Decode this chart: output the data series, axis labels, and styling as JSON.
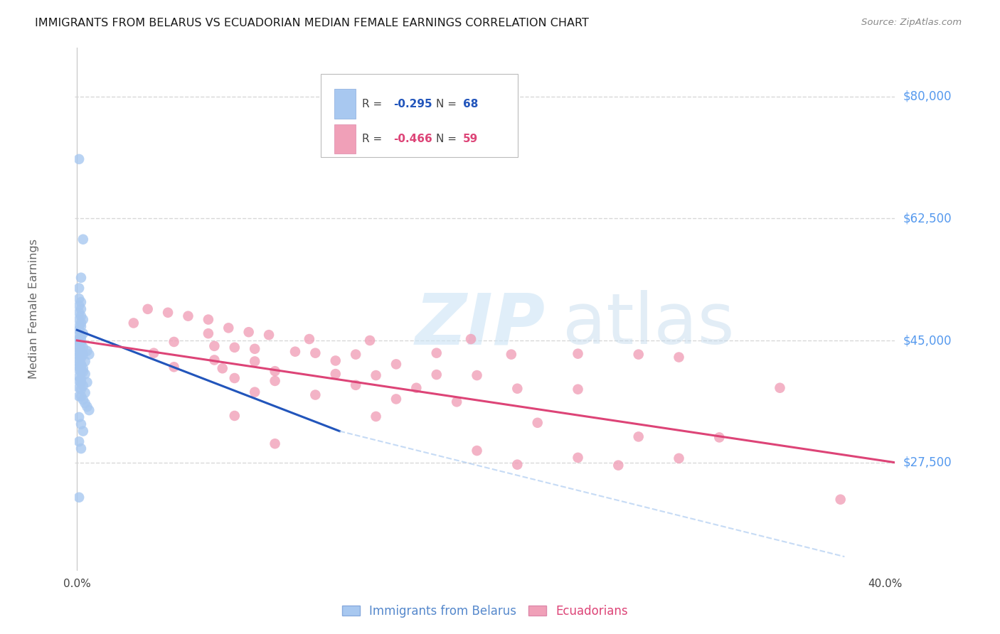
{
  "title": "IMMIGRANTS FROM BELARUS VS ECUADORIAN MEDIAN FEMALE EARNINGS CORRELATION CHART",
  "source": "Source: ZipAtlas.com",
  "ylabel": "Median Female Earnings",
  "ytick_labels": [
    "$80,000",
    "$62,500",
    "$45,000",
    "$27,500"
  ],
  "ytick_values": [
    80000,
    62500,
    45000,
    27500
  ],
  "ylim": [
    12000,
    87000
  ],
  "xlim": [
    -0.001,
    0.405
  ],
  "legend_label_blue": "Immigrants from Belarus",
  "legend_label_pink": "Ecuadorians",
  "blue_color": "#a8c8f0",
  "pink_color": "#f0a0b8",
  "blue_line_color": "#2255bb",
  "pink_line_color": "#dd4477",
  "blue_scatter": [
    [
      0.001,
      71000
    ],
    [
      0.003,
      59500
    ],
    [
      0.002,
      54000
    ],
    [
      0.001,
      52500
    ],
    [
      0.001,
      51000
    ],
    [
      0.002,
      50500
    ],
    [
      0.001,
      50000
    ],
    [
      0.002,
      49500
    ],
    [
      0.001,
      49000
    ],
    [
      0.002,
      48500
    ],
    [
      0.001,
      48000
    ],
    [
      0.003,
      48000
    ],
    [
      0.002,
      47500
    ],
    [
      0.001,
      47000
    ],
    [
      0.002,
      47000
    ],
    [
      0.001,
      46500
    ],
    [
      0.003,
      46000
    ],
    [
      0.001,
      45800
    ],
    [
      0.002,
      45500
    ],
    [
      0.001,
      45200
    ],
    [
      0.002,
      45000
    ],
    [
      0.001,
      44800
    ],
    [
      0.002,
      44500
    ],
    [
      0.001,
      44200
    ],
    [
      0.003,
      44000
    ],
    [
      0.001,
      43800
    ],
    [
      0.002,
      43500
    ],
    [
      0.001,
      43200
    ],
    [
      0.002,
      43000
    ],
    [
      0.003,
      43000
    ],
    [
      0.001,
      42800
    ],
    [
      0.002,
      42500
    ],
    [
      0.001,
      42200
    ],
    [
      0.004,
      42000
    ],
    [
      0.001,
      41800
    ],
    [
      0.002,
      41500
    ],
    [
      0.001,
      41200
    ],
    [
      0.002,
      41000
    ],
    [
      0.003,
      41000
    ],
    [
      0.001,
      40800
    ],
    [
      0.002,
      40500
    ],
    [
      0.004,
      40200
    ],
    [
      0.001,
      39800
    ],
    [
      0.002,
      39500
    ],
    [
      0.001,
      39200
    ],
    [
      0.002,
      39000
    ],
    [
      0.005,
      39000
    ],
    [
      0.003,
      38500
    ],
    [
      0.001,
      38200
    ],
    [
      0.002,
      38000
    ],
    [
      0.004,
      37500
    ],
    [
      0.001,
      37000
    ],
    [
      0.002,
      37000
    ],
    [
      0.003,
      36500
    ],
    [
      0.004,
      36000
    ],
    [
      0.005,
      35500
    ],
    [
      0.006,
      35000
    ],
    [
      0.005,
      43500
    ],
    [
      0.006,
      43000
    ],
    [
      0.001,
      34000
    ],
    [
      0.002,
      33000
    ],
    [
      0.003,
      32000
    ],
    [
      0.001,
      30500
    ],
    [
      0.002,
      29500
    ],
    [
      0.001,
      22500
    ],
    [
      0.002,
      41500
    ],
    [
      0.003,
      40500
    ]
  ],
  "pink_scatter": [
    [
      0.035,
      49500
    ],
    [
      0.045,
      49000
    ],
    [
      0.055,
      48500
    ],
    [
      0.065,
      48000
    ],
    [
      0.028,
      47500
    ],
    [
      0.075,
      46800
    ],
    [
      0.065,
      46000
    ],
    [
      0.085,
      46200
    ],
    [
      0.095,
      45800
    ],
    [
      0.115,
      45200
    ],
    [
      0.048,
      44800
    ],
    [
      0.145,
      45000
    ],
    [
      0.195,
      45200
    ],
    [
      0.068,
      44200
    ],
    [
      0.078,
      44000
    ],
    [
      0.088,
      43800
    ],
    [
      0.108,
      43400
    ],
    [
      0.118,
      43200
    ],
    [
      0.138,
      43000
    ],
    [
      0.178,
      43200
    ],
    [
      0.215,
      43000
    ],
    [
      0.248,
      43100
    ],
    [
      0.278,
      43000
    ],
    [
      0.298,
      42600
    ],
    [
      0.068,
      42200
    ],
    [
      0.088,
      42000
    ],
    [
      0.128,
      42100
    ],
    [
      0.158,
      41600
    ],
    [
      0.048,
      41200
    ],
    [
      0.072,
      41000
    ],
    [
      0.098,
      40600
    ],
    [
      0.128,
      40200
    ],
    [
      0.148,
      40000
    ],
    [
      0.178,
      40100
    ],
    [
      0.198,
      40000
    ],
    [
      0.078,
      39600
    ],
    [
      0.098,
      39200
    ],
    [
      0.138,
      38600
    ],
    [
      0.168,
      38200
    ],
    [
      0.218,
      38100
    ],
    [
      0.248,
      38000
    ],
    [
      0.348,
      38200
    ],
    [
      0.088,
      37600
    ],
    [
      0.118,
      37200
    ],
    [
      0.158,
      36600
    ],
    [
      0.188,
      36200
    ],
    [
      0.078,
      34200
    ],
    [
      0.148,
      34100
    ],
    [
      0.228,
      33200
    ],
    [
      0.278,
      31200
    ],
    [
      0.318,
      31100
    ],
    [
      0.098,
      30200
    ],
    [
      0.198,
      29200
    ],
    [
      0.248,
      28200
    ],
    [
      0.298,
      28100
    ],
    [
      0.218,
      27200
    ],
    [
      0.268,
      27100
    ],
    [
      0.378,
      22200
    ],
    [
      0.038,
      43200
    ]
  ],
  "blue_line_x": [
    0.0,
    0.13
  ],
  "blue_line_y": [
    46500,
    32000
  ],
  "pink_line_x": [
    0.0,
    0.405
  ],
  "pink_line_y": [
    45000,
    27500
  ],
  "dashed_line_x": [
    0.13,
    0.38
  ],
  "dashed_line_y": [
    32000,
    14000
  ],
  "grid_color": "#d8d8d8",
  "background_color": "#ffffff",
  "xtick_positions": [
    0.0,
    0.1,
    0.2,
    0.3,
    0.4
  ],
  "xtick_labels": [
    "0.0%",
    "",
    "",
    "",
    "40.0%"
  ],
  "border_color": "#cccccc"
}
